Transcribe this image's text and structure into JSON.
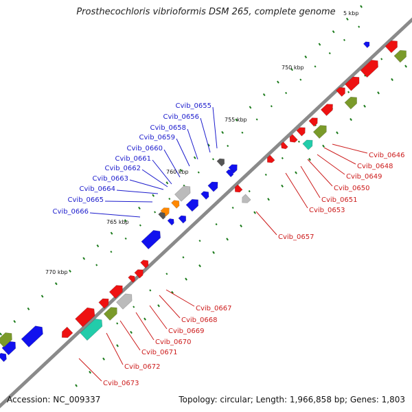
{
  "title": "Prosthecochloris vibrioformis DSM 265, complete genome",
  "footer": {
    "accession": "Accession: NC_009337",
    "stats": "Topology: circular; Length: 1,966,858 bp; Genes: 1,803"
  },
  "colors": {
    "backbone": "#8a8a8a",
    "forward_label": "#1a1acc",
    "reverse_label": "#cc1a1a",
    "tick": "#1a7a1a",
    "gene_red": "#ee1111",
    "gene_blue": "#1111ee",
    "gene_olive": "#7a9a2a",
    "gene_gray": "#bbbbbb",
    "gene_cyan": "#22ccaa"
  },
  "tick_labels": [
    "5 kbp",
    "750 kbp",
    "755 kbp",
    "760 kbp",
    "765 kbp",
    "770 kbp"
  ],
  "forward_labels": [
    "Cvib_0655",
    "Cvib_0656",
    "Cvib_0658",
    "Cvib_0659",
    "Cvib_0660",
    "Cvib_0661",
    "Cvib_0662",
    "Cvib_0663",
    "Cvib_0664",
    "Cvib_0665",
    "Cvib_0666"
  ],
  "reverse_labels": [
    "Cvib_0646",
    "Cvib_0648",
    "Cvib_0649",
    "Cvib_0650",
    "Cvib_0651",
    "Cvib_0653",
    "Cvib_0657",
    "Cvib_0667",
    "Cvib_0668",
    "Cvib_0669",
    "Cvib_0670",
    "Cvib_0671",
    "Cvib_0672",
    "Cvib_0673"
  ]
}
